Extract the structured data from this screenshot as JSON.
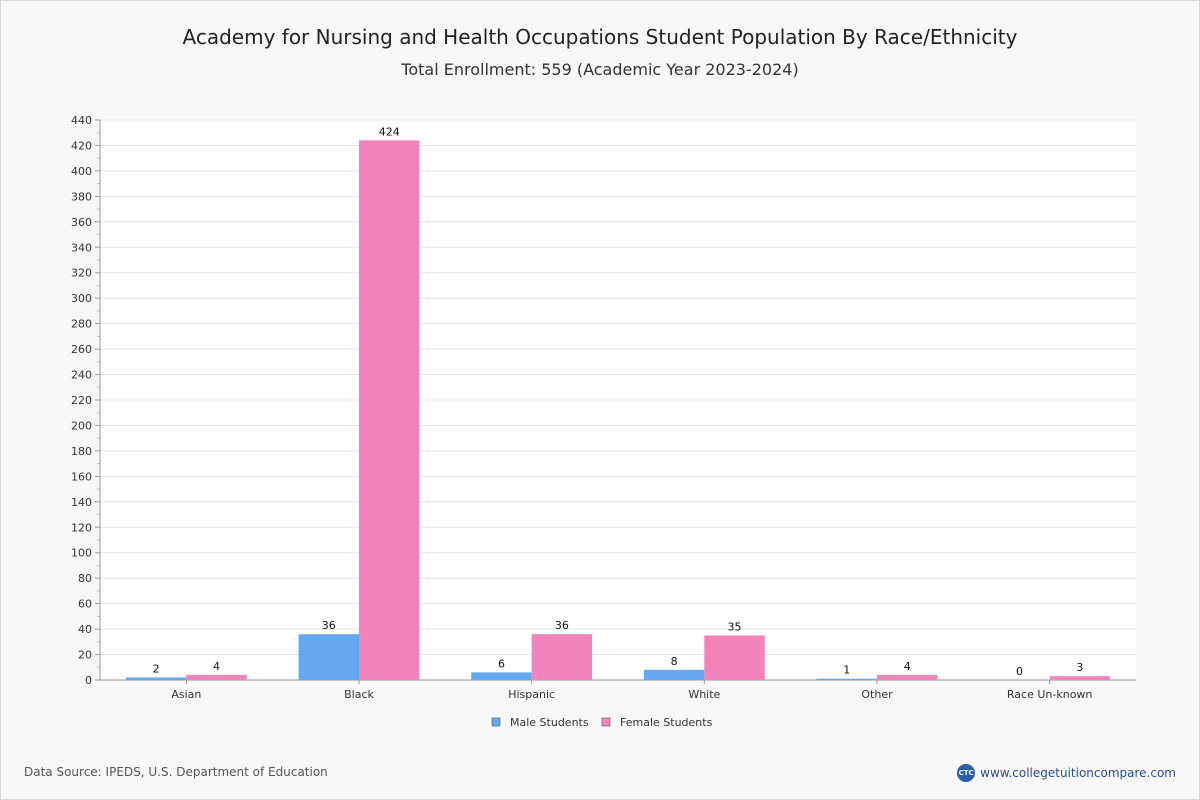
{
  "chart_data": {
    "type": "bar",
    "title": "Academy for Nursing and Health Occupations Student Population By Race/Ethnicity",
    "subtitle": "Total Enrollment: 559 (Academic Year 2023-2024)",
    "categories": [
      "Asian",
      "Black",
      "Hispanic",
      "White",
      "Other",
      "Race Un-known"
    ],
    "series": [
      {
        "name": "Male Students",
        "color": "#64a9f0",
        "values": [
          2,
          36,
          6,
          8,
          1,
          0
        ]
      },
      {
        "name": "Female Students",
        "color": "#f283bb",
        "values": [
          4,
          424,
          36,
          35,
          4,
          3
        ]
      }
    ],
    "ylim": [
      0,
      440
    ],
    "ytick_step": 20,
    "grid": true,
    "legend": "bottom-center",
    "xlabel": "",
    "ylabel": ""
  },
  "footer": {
    "source": "Data Source: IPEDS, U.S. Department of Education",
    "website": "www.collegetuitioncompare.com",
    "logo_text": "CTC"
  }
}
